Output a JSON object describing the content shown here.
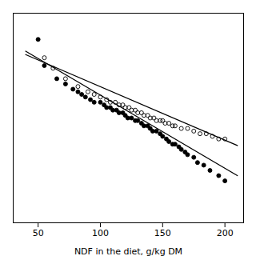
{
  "chart_data": {
    "type": "scatter",
    "xlabel": "NDF in the diet, g/kg DM",
    "xlim": [
      30,
      215
    ],
    "ylim": [
      0.25,
      1.05
    ],
    "xticks": [
      50,
      100,
      150,
      200
    ],
    "tick_labels": "x",
    "series": [
      {
        "type": "scatter",
        "marker": "open_circle",
        "color": "#000000",
        "x": [
          55,
          62,
          72,
          82,
          90,
          95,
          100,
          105,
          108,
          112,
          115,
          118,
          120,
          123,
          125,
          128,
          130,
          133,
          135,
          138,
          140,
          143,
          145,
          148,
          150,
          152,
          155,
          158,
          160,
          165,
          170,
          175,
          180,
          185,
          190,
          195,
          200
        ],
        "values": [
          0.88,
          0.84,
          0.8,
          0.77,
          0.75,
          0.74,
          0.73,
          0.72,
          0.71,
          0.71,
          0.7,
          0.7,
          0.69,
          0.69,
          0.68,
          0.68,
          0.67,
          0.67,
          0.66,
          0.66,
          0.65,
          0.65,
          0.64,
          0.64,
          0.64,
          0.63,
          0.63,
          0.62,
          0.62,
          0.61,
          0.61,
          0.6,
          0.59,
          0.59,
          0.58,
          0.57,
          0.57
        ]
      },
      {
        "type": "scatter",
        "marker": "circle",
        "color": "#000000",
        "x": [
          50,
          55,
          65,
          72,
          78,
          82,
          85,
          88,
          92,
          95,
          100,
          103,
          105,
          108,
          110,
          113,
          115,
          118,
          120,
          122,
          125,
          128,
          130,
          133,
          135,
          138,
          140,
          142,
          145,
          148,
          150,
          153,
          155,
          158,
          160,
          163,
          165,
          168,
          170,
          175,
          178,
          183,
          188,
          195,
          200
        ],
        "values": [
          0.95,
          0.85,
          0.8,
          0.78,
          0.76,
          0.75,
          0.74,
          0.73,
          0.72,
          0.71,
          0.71,
          0.7,
          0.69,
          0.69,
          0.68,
          0.68,
          0.67,
          0.67,
          0.66,
          0.65,
          0.65,
          0.64,
          0.64,
          0.63,
          0.62,
          0.62,
          0.61,
          0.6,
          0.6,
          0.59,
          0.58,
          0.57,
          0.56,
          0.55,
          0.55,
          0.54,
          0.53,
          0.52,
          0.51,
          0.5,
          0.48,
          0.47,
          0.45,
          0.43,
          0.41
        ]
      },
      {
        "type": "line",
        "color": "#000000",
        "x": [
          40,
          210
        ],
        "values": [
          0.892,
          0.545
        ]
      },
      {
        "type": "line",
        "color": "#000000",
        "x": [
          40,
          210
        ],
        "values": [
          0.905,
          0.43
        ]
      }
    ]
  }
}
